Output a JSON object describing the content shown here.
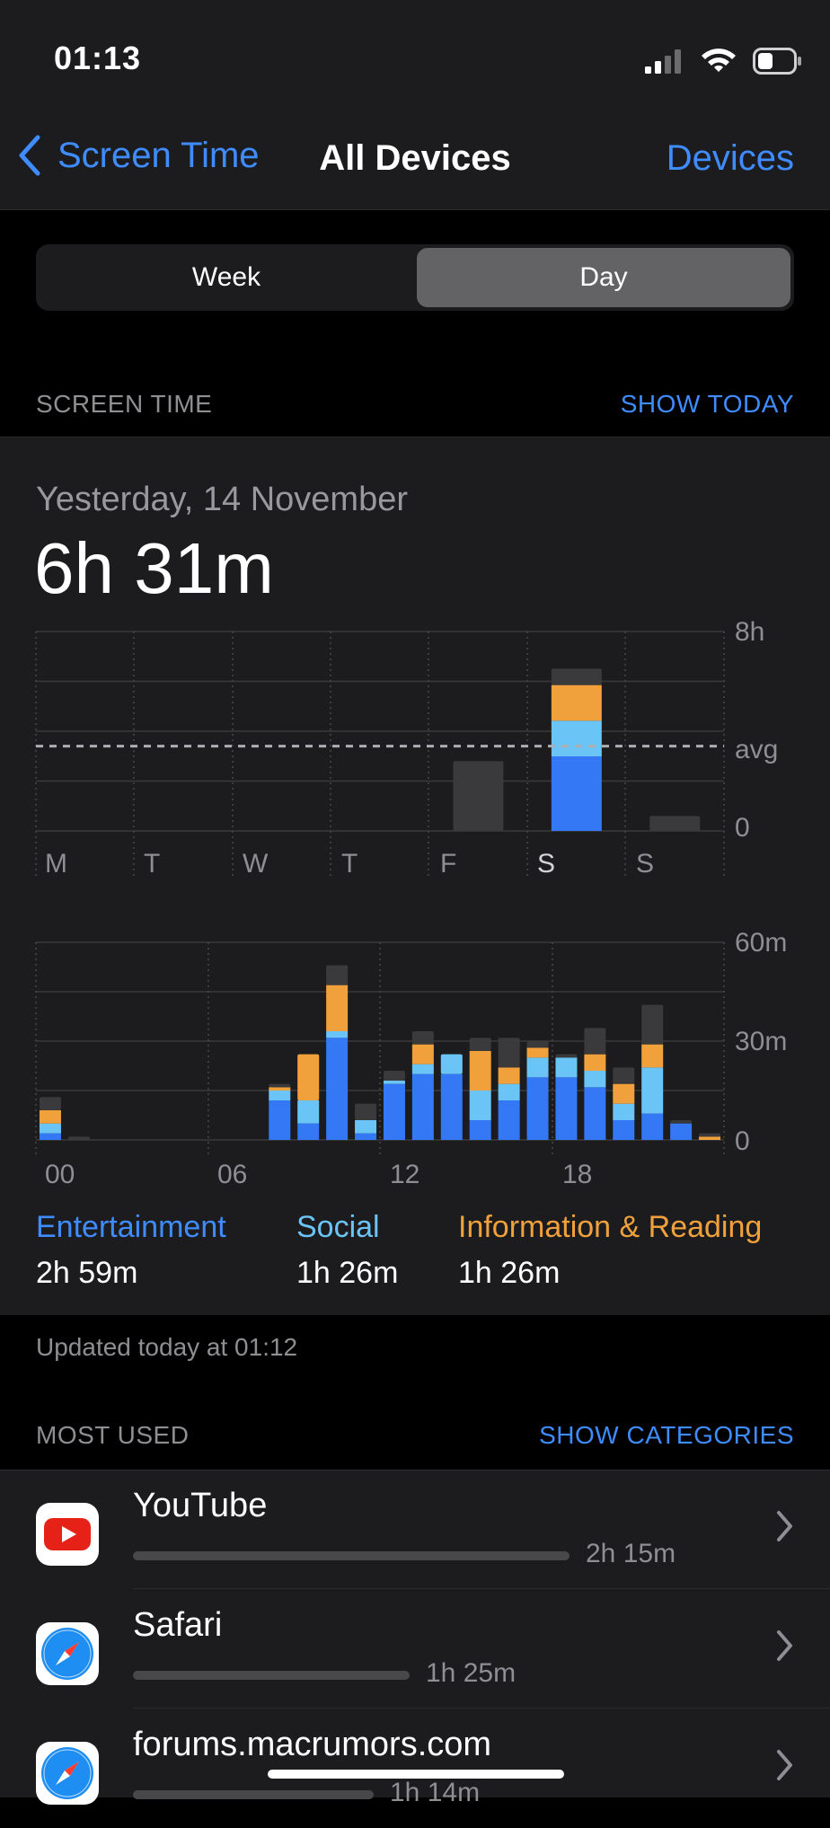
{
  "status_bar": {
    "time": "01:13"
  },
  "nav": {
    "back_label": "Screen Time",
    "title": "All Devices",
    "right_label": "Devices"
  },
  "segmented": {
    "options": [
      "Week",
      "Day"
    ],
    "selected": "Day"
  },
  "screen_time_section": {
    "header": "SCREEN TIME",
    "action": "SHOW TODAY"
  },
  "summary": {
    "date": "Yesterday, 14 November",
    "total": "6h 31m"
  },
  "chart_data": [
    {
      "type": "bar",
      "title": "",
      "categories": [
        "M",
        "T",
        "W",
        "T",
        "F",
        "S",
        "S"
      ],
      "y_ticks": [
        "8h",
        "avg",
        "0"
      ],
      "ylim": [
        0,
        8
      ],
      "avg_hours": 3.4,
      "series": [
        {
          "name": "Entertainment",
          "values": [
            0,
            0,
            0,
            0,
            0,
            2.99,
            0
          ]
        },
        {
          "name": "Social",
          "values": [
            0,
            0,
            0,
            0,
            0,
            1.43,
            0
          ]
        },
        {
          "name": "Information & Reading",
          "values": [
            0,
            0,
            0,
            0,
            0,
            1.43,
            0
          ]
        },
        {
          "name": "Other",
          "values": [
            0,
            0,
            0,
            0,
            2.8,
            0.66,
            0.6
          ]
        }
      ],
      "selected_category": 5,
      "colors": {
        "Entertainment": "#3478f6",
        "Social": "#6ac4f5",
        "Information & Reading": "#f0a13b",
        "Other": "#3a3a3c"
      }
    },
    {
      "type": "bar",
      "title": "",
      "x_ticks": [
        "00",
        "06",
        "12",
        "18"
      ],
      "y_ticks": [
        "60m",
        "30m",
        "0"
      ],
      "ylim": [
        0,
        60
      ],
      "categories": [
        "00",
        "01",
        "02",
        "03",
        "04",
        "05",
        "06",
        "07",
        "08",
        "09",
        "10",
        "11",
        "12",
        "13",
        "14",
        "15",
        "16",
        "17",
        "18",
        "19",
        "20",
        "21",
        "22",
        "23"
      ],
      "series": [
        {
          "name": "Entertainment",
          "values": [
            2,
            0,
            0,
            0,
            0,
            0,
            0,
            0,
            12,
            5,
            31,
            2,
            17,
            20,
            20,
            6,
            12,
            19,
            19,
            16,
            6,
            8,
            5,
            0
          ]
        },
        {
          "name": "Social",
          "values": [
            3,
            0,
            0,
            0,
            0,
            0,
            0,
            0,
            3,
            7,
            2,
            4,
            1,
            3,
            6,
            9,
            5,
            6,
            6,
            5,
            5,
            14,
            0,
            0
          ]
        },
        {
          "name": "Information & Reading",
          "values": [
            4,
            0,
            0,
            0,
            0,
            0,
            0,
            0,
            1,
            14,
            14,
            0,
            0,
            6,
            0,
            12,
            5,
            3,
            0,
            5,
            6,
            7,
            0,
            1
          ]
        },
        {
          "name": "Other",
          "values": [
            4,
            1,
            0,
            0,
            0,
            0,
            0,
            0,
            1,
            0,
            6,
            5,
            3,
            4,
            0,
            4,
            9,
            2,
            1,
            8,
            5,
            12,
            1,
            1
          ]
        }
      ],
      "colors": {
        "Entertainment": "#3478f6",
        "Social": "#6ac4f5",
        "Information & Reading": "#f0a13b",
        "Other": "#3a3a3c"
      }
    }
  ],
  "legend": [
    {
      "label": "Entertainment",
      "value": "2h 59m",
      "color": "#3478f6"
    },
    {
      "label": "Social",
      "value": "1h 26m",
      "color": "#6ac4f5"
    },
    {
      "label": "Information & Reading",
      "value": "1h 26m",
      "color": "#f0a13b"
    }
  ],
  "updated_text": "Updated today at 01:12",
  "most_used": {
    "header": "MOST USED",
    "action": "SHOW CATEGORIES",
    "items": [
      {
        "name": "YouTube",
        "duration": "2h 15m",
        "icon": "youtube-icon",
        "share": 1.0
      },
      {
        "name": "Safari",
        "duration": "1h 25m",
        "icon": "safari-icon",
        "share": 0.63
      },
      {
        "name": "forums.macrumors.com",
        "duration": "1h 14m",
        "icon": "safari-icon",
        "share": 0.55
      }
    ]
  }
}
